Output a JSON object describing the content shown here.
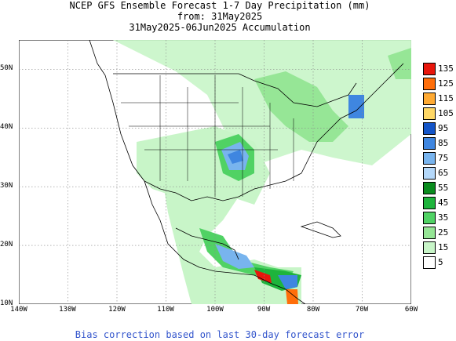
{
  "title": {
    "line1": "NCEP GFS Ensemble Forecast 1-7 Day Precipitation (mm)",
    "line2": "from: 31May2025",
    "line3": "31May2025-06Jun2025 Accumulation"
  },
  "footer": "Bias correction based on last 30-day forecast error",
  "axes": {
    "x_ticks": [
      "140W",
      "130W",
      "120W",
      "110W",
      "100W",
      "90W",
      "80W",
      "70W",
      "60W"
    ],
    "y_ticks": [
      "50N",
      "40N",
      "30N",
      "20N",
      "10N"
    ]
  },
  "legend": {
    "labels": [
      "135",
      "125",
      "115",
      "105",
      "95",
      "85",
      "75",
      "65",
      "55",
      "45",
      "35",
      "25",
      "15",
      "5"
    ],
    "colors": [
      "#e8160c",
      "#ff6e0a",
      "#ffaa33",
      "#ffd866",
      "#1455c8",
      "#3f86e0",
      "#78b4ee",
      "#b4d8fa",
      "#0a8c1e",
      "#1eb43c",
      "#50d264",
      "#96e696",
      "#c8f5c8",
      "#ffffff"
    ]
  },
  "map": {
    "lon_range": [
      -140,
      -60
    ],
    "lat_range": [
      10,
      55
    ],
    "grid": true
  }
}
